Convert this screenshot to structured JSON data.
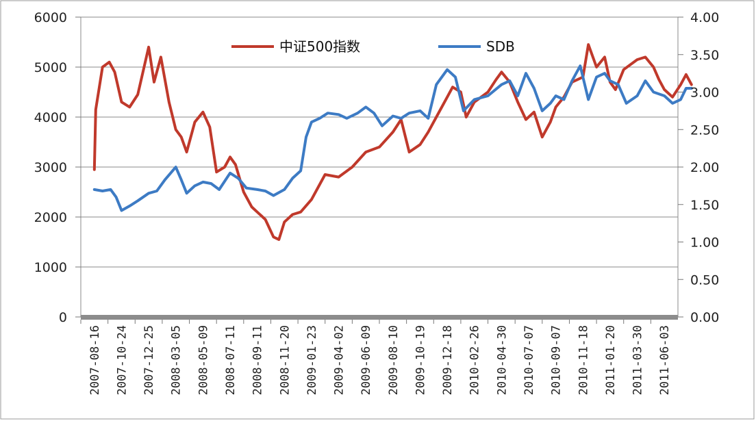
{
  "chart_data": {
    "type": "line",
    "title": "",
    "xlabel": "",
    "ylabel": "",
    "y_left": {
      "ticks": [
        "0",
        "1000",
        "2000",
        "3000",
        "4000",
        "5000",
        "6000"
      ],
      "range": [
        0,
        6000
      ]
    },
    "y_right": {
      "ticks": [
        "0.00",
        "0.50",
        "1.00",
        "1.50",
        "2.00",
        "2.50",
        "3.00",
        "3.50",
        "4.00"
      ],
      "range": [
        0,
        4
      ]
    },
    "x_ticks": [
      "2007-08-16",
      "2007-10-24",
      "2007-12-25",
      "2008-03-05",
      "2008-05-09",
      "2008-07-11",
      "2008-09-11",
      "2008-11-20",
      "2009-01-23",
      "2009-04-02",
      "2009-06-09",
      "2009-08-10",
      "2009-10-19",
      "2009-12-18",
      "2010-02-26",
      "2010-04-30",
      "2010-07-07",
      "2010-09-07",
      "2010-11-18",
      "2011-01-20",
      "2011-03-30",
      "2011-06-03"
    ],
    "legend_position": "top-center",
    "grid": "horizontal",
    "series": [
      {
        "name": "中证500指数",
        "axis": "left",
        "color": "#C0392B",
        "points": [
          [
            0,
            2950
          ],
          [
            0.05,
            4150
          ],
          [
            0.3,
            5000
          ],
          [
            0.55,
            5100
          ],
          [
            0.75,
            4900
          ],
          [
            1,
            4300
          ],
          [
            1.3,
            4200
          ],
          [
            1.6,
            4450
          ],
          [
            2,
            5400
          ],
          [
            2.2,
            4700
          ],
          [
            2.45,
            5200
          ],
          [
            2.75,
            4300
          ],
          [
            3,
            3750
          ],
          [
            3.2,
            3600
          ],
          [
            3.4,
            3300
          ],
          [
            3.7,
            3900
          ],
          [
            4,
            4100
          ],
          [
            4.25,
            3800
          ],
          [
            4.5,
            2900
          ],
          [
            4.8,
            3000
          ],
          [
            5,
            3200
          ],
          [
            5.2,
            3050
          ],
          [
            5.5,
            2500
          ],
          [
            5.8,
            2200
          ],
          [
            6,
            2100
          ],
          [
            6.3,
            1950
          ],
          [
            6.6,
            1600
          ],
          [
            6.8,
            1550
          ],
          [
            7,
            1900
          ],
          [
            7.3,
            2050
          ],
          [
            7.6,
            2100
          ],
          [
            8,
            2350
          ],
          [
            8.5,
            2850
          ],
          [
            9,
            2800
          ],
          [
            9.5,
            3000
          ],
          [
            10,
            3300
          ],
          [
            10.5,
            3400
          ],
          [
            11,
            3700
          ],
          [
            11.3,
            3950
          ],
          [
            11.6,
            3300
          ],
          [
            12,
            3450
          ],
          [
            12.3,
            3700
          ],
          [
            12.6,
            4000
          ],
          [
            13,
            4400
          ],
          [
            13.2,
            4600
          ],
          [
            13.5,
            4500
          ],
          [
            13.7,
            4000
          ],
          [
            14,
            4300
          ],
          [
            14.5,
            4500
          ],
          [
            14.8,
            4750
          ],
          [
            15,
            4900
          ],
          [
            15.3,
            4700
          ],
          [
            15.6,
            4300
          ],
          [
            15.9,
            3950
          ],
          [
            16.2,
            4100
          ],
          [
            16.5,
            3600
          ],
          [
            16.8,
            3900
          ],
          [
            17,
            4200
          ],
          [
            17.3,
            4400
          ],
          [
            17.6,
            4700
          ],
          [
            18,
            4800
          ],
          [
            18.2,
            5450
          ],
          [
            18.5,
            5000
          ],
          [
            18.8,
            5200
          ],
          [
            19,
            4700
          ],
          [
            19.2,
            4550
          ],
          [
            19.5,
            4950
          ],
          [
            20,
            5150
          ],
          [
            20.3,
            5200
          ],
          [
            20.6,
            5000
          ],
          [
            20.8,
            4750
          ],
          [
            21,
            4550
          ],
          [
            21.3,
            4400
          ],
          [
            21.6,
            4650
          ],
          [
            21.8,
            4850
          ],
          [
            22,
            4650
          ]
        ]
      },
      {
        "name": "SDB",
        "axis": "right",
        "color": "#3D7BC4",
        "points": [
          [
            0,
            1.7
          ],
          [
            0.3,
            1.68
          ],
          [
            0.6,
            1.7
          ],
          [
            0.8,
            1.6
          ],
          [
            1,
            1.42
          ],
          [
            1.3,
            1.48
          ],
          [
            1.6,
            1.55
          ],
          [
            2,
            1.65
          ],
          [
            2.3,
            1.68
          ],
          [
            2.6,
            1.83
          ],
          [
            3,
            2.0
          ],
          [
            3.2,
            1.83
          ],
          [
            3.4,
            1.65
          ],
          [
            3.7,
            1.75
          ],
          [
            4,
            1.8
          ],
          [
            4.3,
            1.78
          ],
          [
            4.6,
            1.7
          ],
          [
            5,
            1.92
          ],
          [
            5.3,
            1.85
          ],
          [
            5.6,
            1.72
          ],
          [
            6,
            1.7
          ],
          [
            6.3,
            1.68
          ],
          [
            6.6,
            1.62
          ],
          [
            7,
            1.7
          ],
          [
            7.3,
            1.85
          ],
          [
            7.6,
            1.95
          ],
          [
            7.8,
            2.4
          ],
          [
            8,
            2.6
          ],
          [
            8.3,
            2.65
          ],
          [
            8.6,
            2.72
          ],
          [
            9,
            2.7
          ],
          [
            9.3,
            2.65
          ],
          [
            9.7,
            2.72
          ],
          [
            10,
            2.8
          ],
          [
            10.3,
            2.72
          ],
          [
            10.6,
            2.55
          ],
          [
            11,
            2.68
          ],
          [
            11.3,
            2.65
          ],
          [
            11.6,
            2.72
          ],
          [
            12,
            2.75
          ],
          [
            12.3,
            2.65
          ],
          [
            12.6,
            3.1
          ],
          [
            13,
            3.3
          ],
          [
            13.3,
            3.2
          ],
          [
            13.6,
            2.75
          ],
          [
            14,
            2.9
          ],
          [
            14.5,
            2.95
          ],
          [
            15,
            3.1
          ],
          [
            15.3,
            3.15
          ],
          [
            15.6,
            2.95
          ],
          [
            15.9,
            3.25
          ],
          [
            16.2,
            3.05
          ],
          [
            16.5,
            2.75
          ],
          [
            16.8,
            2.85
          ],
          [
            17,
            2.95
          ],
          [
            17.3,
            2.9
          ],
          [
            17.6,
            3.15
          ],
          [
            17.9,
            3.35
          ],
          [
            18.2,
            2.9
          ],
          [
            18.5,
            3.2
          ],
          [
            18.8,
            3.25
          ],
          [
            19,
            3.15
          ],
          [
            19.3,
            3.1
          ],
          [
            19.6,
            2.85
          ],
          [
            20,
            2.95
          ],
          [
            20.3,
            3.15
          ],
          [
            20.6,
            3.0
          ],
          [
            21,
            2.95
          ],
          [
            21.3,
            2.85
          ],
          [
            21.6,
            2.9
          ],
          [
            21.8,
            3.05
          ],
          [
            22,
            3.05
          ]
        ]
      }
    ]
  }
}
